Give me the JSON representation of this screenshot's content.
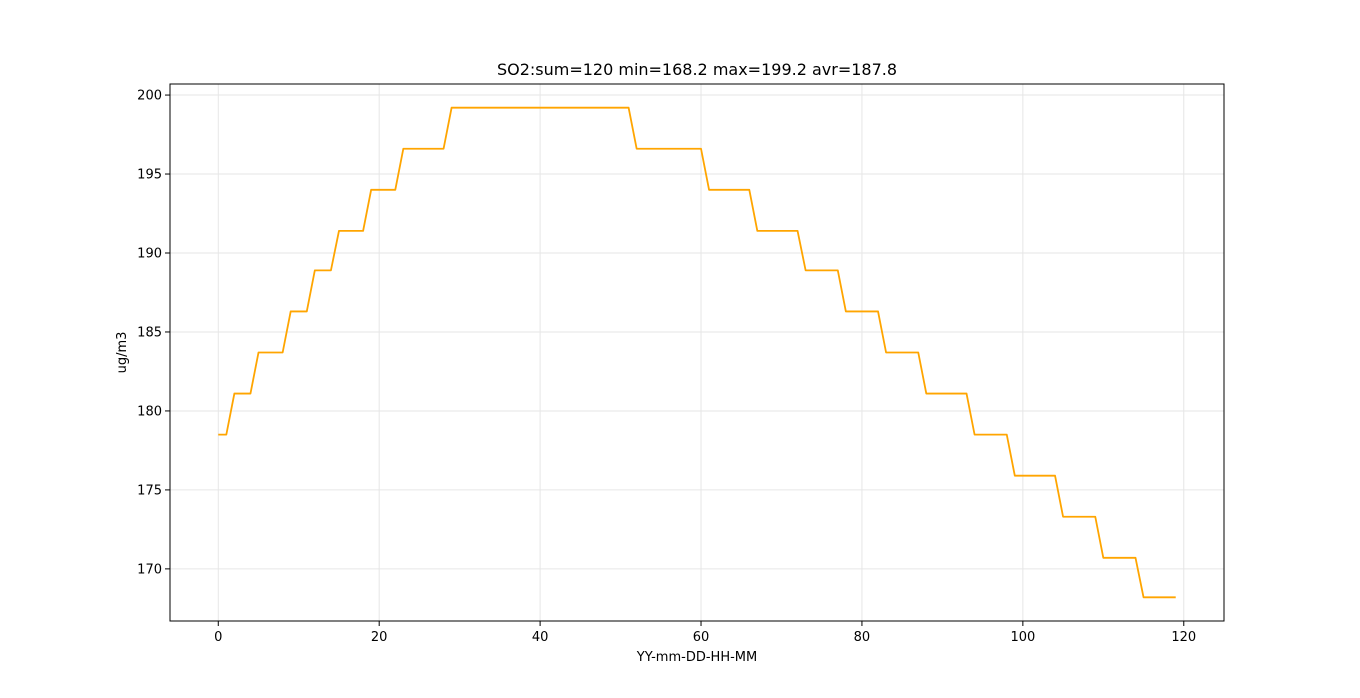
{
  "chart_data": {
    "type": "line",
    "title": "SO2:sum=120 min=168.2 max=199.2 avr=187.8",
    "xlabel": "YY-mm-DD-HH-MM",
    "ylabel": "ug/m3",
    "xlim": [
      -6,
      125
    ],
    "ylim": [
      166.7,
      200.7
    ],
    "xticks": [
      0,
      20,
      40,
      60,
      80,
      100,
      120
    ],
    "yticks": [
      170,
      175,
      180,
      185,
      190,
      195,
      200
    ],
    "grid": true,
    "line_color": "#ffa500",
    "series": [
      {
        "values": [
          178.5,
          178.5,
          181.1,
          181.1,
          181.1,
          183.7,
          183.7,
          183.7,
          183.7,
          186.3,
          186.3,
          186.3,
          188.9,
          188.9,
          188.9,
          191.4,
          191.4,
          191.4,
          191.4,
          194.0,
          194.0,
          194.0,
          194.0,
          196.6,
          196.6,
          196.6,
          196.6,
          196.6,
          196.6,
          199.2,
          199.2,
          199.2,
          199.2,
          199.2,
          199.2,
          199.2,
          199.2,
          199.2,
          199.2,
          199.2,
          199.2,
          199.2,
          199.2,
          199.2,
          199.2,
          199.2,
          199.2,
          199.2,
          199.2,
          199.2,
          199.2,
          199.2,
          196.6,
          196.6,
          196.6,
          196.6,
          196.6,
          196.6,
          196.6,
          196.6,
          196.6,
          194.0,
          194.0,
          194.0,
          194.0,
          194.0,
          194.0,
          191.4,
          191.4,
          191.4,
          191.4,
          191.4,
          191.4,
          188.9,
          188.9,
          188.9,
          188.9,
          188.9,
          186.3,
          186.3,
          186.3,
          186.3,
          186.3,
          183.7,
          183.7,
          183.7,
          183.7,
          183.7,
          181.1,
          181.1,
          181.1,
          181.1,
          181.1,
          181.1,
          178.5,
          178.5,
          178.5,
          178.5,
          178.5,
          175.9,
          175.9,
          175.9,
          175.9,
          175.9,
          175.9,
          173.3,
          173.3,
          173.3,
          173.3,
          173.3,
          170.7,
          170.7,
          170.7,
          170.7,
          170.7,
          168.2,
          168.2,
          168.2,
          168.2,
          168.2
        ]
      }
    ]
  }
}
